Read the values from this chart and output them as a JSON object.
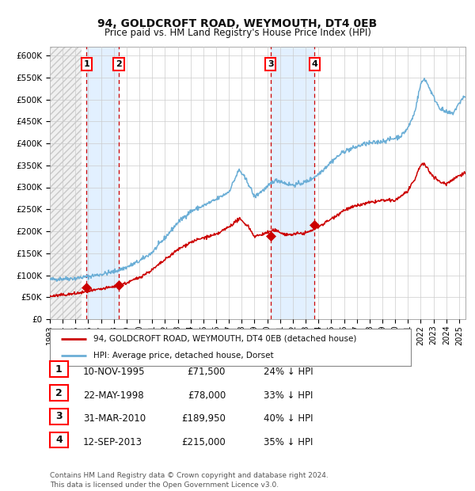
{
  "title1": "94, GOLDCROFT ROAD, WEYMOUTH, DT4 0EB",
  "title2": "Price paid vs. HM Land Registry's House Price Index (HPI)",
  "legend_line1": "94, GOLDCROFT ROAD, WEYMOUTH, DT4 0EB (detached house)",
  "legend_line2": "HPI: Average price, detached house, Dorset",
  "footer": "Contains HM Land Registry data © Crown copyright and database right 2024.\nThis data is licensed under the Open Government Licence v3.0.",
  "sales": [
    {
      "num": 1,
      "date_str": "10-NOV-1995",
      "price": 71500,
      "date_x": 1995.87,
      "hpi_pct": "24"
    },
    {
      "num": 2,
      "date_str": "22-MAY-1998",
      "price": 78000,
      "date_x": 1998.39,
      "hpi_pct": "33"
    },
    {
      "num": 3,
      "date_str": "31-MAR-2010",
      "price": 189950,
      "date_x": 2010.25,
      "hpi_pct": "40"
    },
    {
      "num": 4,
      "date_str": "12-SEP-2013",
      "price": 215000,
      "date_x": 2013.7,
      "hpi_pct": "35"
    }
  ],
  "hpi_color": "#6baed6",
  "price_color": "#cc0000",
  "background_color": "#ffffff",
  "grid_color": "#cccccc",
  "sale_region_color": "#ddeeff",
  "dashed_line_color": "#cc0000",
  "ylim": [
    0,
    620000
  ],
  "xlim_start": 1993.0,
  "xlim_end": 2025.5,
  "yticks": [
    0,
    50000,
    100000,
    150000,
    200000,
    250000,
    300000,
    350000,
    400000,
    450000,
    500000,
    550000,
    600000
  ],
  "ytick_labels": [
    "£0",
    "£50K",
    "£100K",
    "£150K",
    "£200K",
    "£250K",
    "£300K",
    "£350K",
    "£400K",
    "£450K",
    "£500K",
    "£550K",
    "£600K"
  ],
  "xtick_years": [
    1993,
    1994,
    1995,
    1996,
    1997,
    1998,
    1999,
    2000,
    2001,
    2002,
    2003,
    2004,
    2005,
    2006,
    2007,
    2008,
    2009,
    2010,
    2011,
    2012,
    2013,
    2014,
    2015,
    2016,
    2017,
    2018,
    2019,
    2020,
    2021,
    2022,
    2023,
    2024,
    2025
  ],
  "hatch_end": 1995.5
}
